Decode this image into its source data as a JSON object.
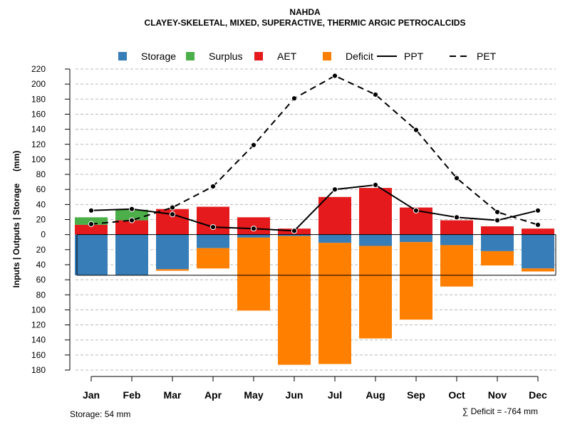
{
  "chart_data": {
    "type": "bar",
    "title": "NAHDA",
    "subtitle": "CLAYEY-SKELETAL, MIXED, SUPERACTIVE, THERMIC ARGIC PETROCALCIDS",
    "ylabel": "Inputs | Outputs | Storage     (mm)",
    "categories": [
      "Jan",
      "Feb",
      "Mar",
      "Apr",
      "May",
      "Jun",
      "Jul",
      "Aug",
      "Sep",
      "Oct",
      "Nov",
      "Dec"
    ],
    "ylim": [
      -180,
      220
    ],
    "yticks": [
      220,
      200,
      180,
      160,
      140,
      120,
      100,
      80,
      60,
      40,
      20,
      0,
      -20,
      -40,
      -60,
      -80,
      -100,
      -120,
      -140,
      -160,
      -180
    ],
    "ytick_labels": [
      "220",
      "200",
      "180",
      "160",
      "140",
      "120",
      "100",
      "80",
      "60",
      "40",
      "20",
      "0",
      "20",
      "40",
      "60",
      "80",
      "100",
      "120",
      "140",
      "160",
      "180"
    ],
    "grid": true,
    "legend_position": "top",
    "legend": [
      {
        "key": "storage",
        "label": "Storage",
        "kind": "box",
        "color": "#377EB8"
      },
      {
        "key": "surplus",
        "label": "Surplus",
        "kind": "box",
        "color": "#4DAF4A"
      },
      {
        "key": "aet",
        "label": "AET",
        "kind": "box",
        "color": "#E41A1C"
      },
      {
        "key": "deficit",
        "label": "Deficit",
        "kind": "box",
        "color": "#FF7F00"
      },
      {
        "key": "ppt",
        "label": "PPT",
        "kind": "solid",
        "color": "#000000"
      },
      {
        "key": "pet",
        "label": "PET",
        "kind": "dashed",
        "color": "#000000"
      }
    ],
    "series": {
      "aet": [
        13,
        19,
        34,
        37,
        23,
        8,
        50,
        62,
        36,
        19,
        11,
        8
      ],
      "surplus": [
        10,
        14,
        0,
        0,
        0,
        0,
        0,
        0,
        0,
        0,
        0,
        0
      ],
      "storage": [
        54,
        54,
        46,
        18,
        4,
        2,
        11,
        15,
        10,
        14,
        22,
        45
      ],
      "deficit": [
        0,
        0,
        2,
        27,
        97,
        171,
        161,
        123,
        103,
        55,
        19,
        4
      ],
      "ppt": [
        32,
        34,
        27,
        10,
        8,
        5,
        60,
        66,
        32,
        23,
        19,
        32
      ],
      "pet": [
        14,
        19,
        36,
        64,
        119,
        181,
        211,
        186,
        139,
        75,
        30,
        13
      ]
    },
    "storage_capacity": 54,
    "footnote_storage": "Storage: 54 mm",
    "footnote_deficit": "∑ Deficit = -764 mm"
  }
}
